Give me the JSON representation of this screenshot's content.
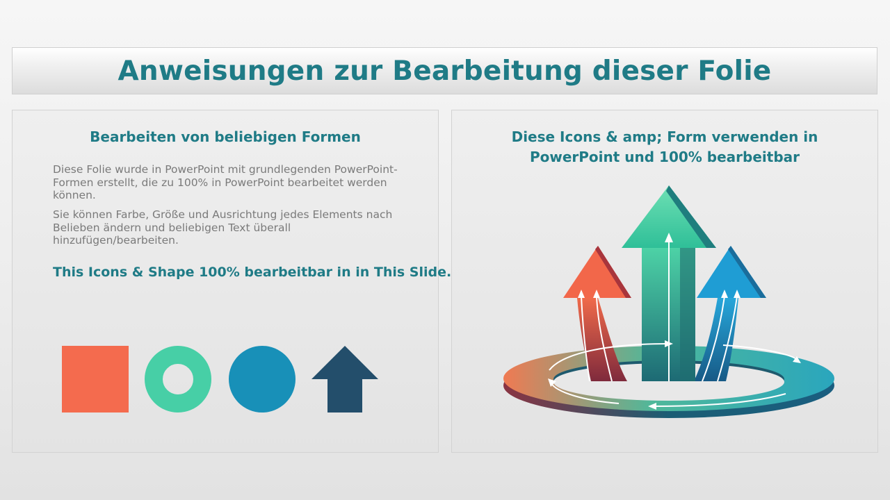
{
  "slide": {
    "title": "Anweisungen zur Bearbeitung dieser Folie"
  },
  "left_panel": {
    "heading": "Bearbeiten von beliebigen Formen",
    "paragraph_1": "Diese Folie wurde in PowerPoint mit grundlegenden PowerPoint-Formen erstellt, die zu 100% in PowerPoint bearbeitet werden können.",
    "paragraph_2": "Sie können Farbe, Größe und Ausrichtung jedes Elements nach Belieben ändern und beliebigen Text überall hinzufügen/bearbeiten.",
    "emphasis": "This Icons & Shape 100% bearbeitbar in in This Slide.",
    "shapes": [
      {
        "icon": "square-shape",
        "color": "#f46b4e"
      },
      {
        "icon": "ring-shape",
        "color": "#47cfa6"
      },
      {
        "icon": "circle-shape",
        "color": "#1890b8"
      },
      {
        "icon": "up-arrow-shape",
        "color": "#234e6b"
      }
    ]
  },
  "right_panel": {
    "heading": "Diese Icons & amp; Form verwenden in PowerPoint und 100% bearbeitbar",
    "illustration": "three-rising-arrows-with-circular-ring-icon"
  },
  "colors": {
    "accent": "#1f7b86",
    "body_text": "#7a7a7a",
    "orange": "#f46b4e",
    "green": "#47cfa6",
    "blue": "#1890b8",
    "navy": "#234e6b"
  }
}
